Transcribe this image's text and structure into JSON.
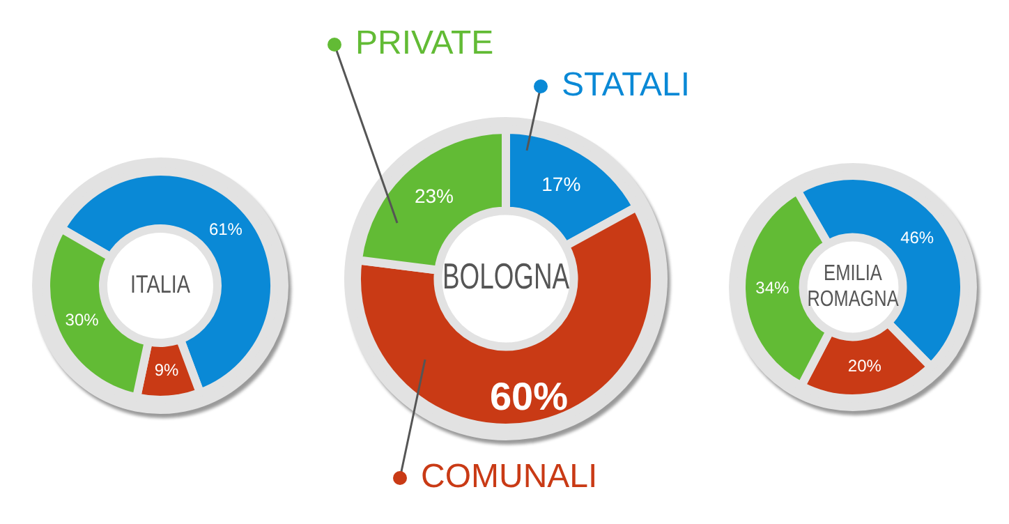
{
  "chart_data": [
    {
      "type": "donut",
      "title": "ITALIA",
      "categories": [
        null,
        null,
        null
      ],
      "values": [
        61,
        9,
        30
      ],
      "colors": [
        "#0a89d6",
        "#c93a15",
        "#62bb35"
      ],
      "value_labels": [
        "61%",
        "9%",
        "30%"
      ]
    },
    {
      "type": "donut",
      "title": "BOLOGNA",
      "legend": "top",
      "categories": [
        "STATALI",
        "COMUNALI",
        "PRIVATE"
      ],
      "values": [
        17,
        60,
        23
      ],
      "colors": [
        "#0a89d6",
        "#c93a15",
        "#62bb35"
      ],
      "value_labels": [
        "17%",
        "60%",
        "23%"
      ]
    },
    {
      "type": "donut",
      "title": "EMILIA ROMAGNA",
      "categories": [
        null,
        null,
        null
      ],
      "values": [
        46,
        20,
        34
      ],
      "colors": [
        "#0a89d6",
        "#c93a15",
        "#62bb35"
      ],
      "value_labels": [
        "46%",
        "20%",
        "34%"
      ]
    }
  ]
}
